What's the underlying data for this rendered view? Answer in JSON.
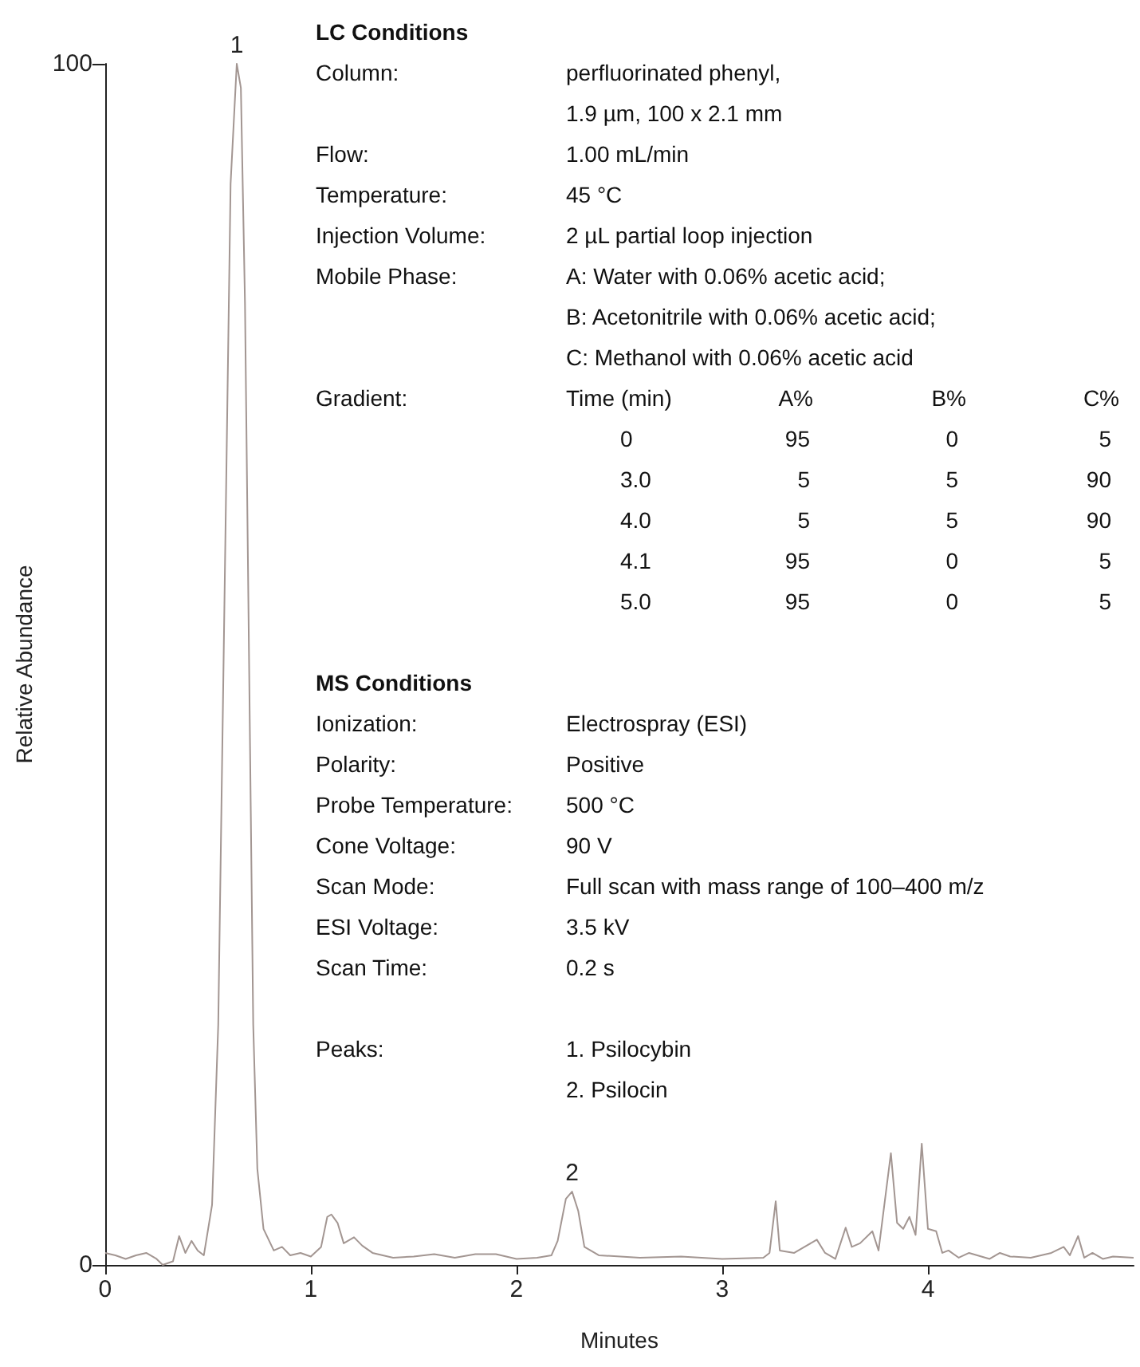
{
  "chart_data": {
    "type": "line",
    "xlabel": "Minutes",
    "ylabel": "Relative Abundance",
    "xlim": [
      0,
      5
    ],
    "xticks": [
      0,
      1,
      2,
      3,
      4
    ],
    "ylim": [
      0,
      100
    ],
    "yticks": [
      0,
      100
    ],
    "grid": false,
    "marker": "none",
    "line_style": "solid",
    "series": [
      {
        "color": "#a39692",
        "x": [
          0,
          0.05,
          0.1,
          0.15,
          0.2,
          0.25,
          0.28,
          0.33,
          0.36,
          0.39,
          0.42,
          0.45,
          0.48,
          0.52,
          0.55,
          0.58,
          0.61,
          0.64,
          0.66,
          0.68,
          0.7,
          0.72,
          0.74,
          0.77,
          0.82,
          0.86,
          0.9,
          0.95,
          1.0,
          1.05,
          1.08,
          1.1,
          1.13,
          1.16,
          1.21,
          1.25,
          1.3,
          1.4,
          1.5,
          1.6,
          1.7,
          1.8,
          1.9,
          2.0,
          2.1,
          2.17,
          2.2,
          2.24,
          2.27,
          2.3,
          2.33,
          2.4,
          2.6,
          2.8,
          3.0,
          3.2,
          3.23,
          3.26,
          3.28,
          3.35,
          3.4,
          3.46,
          3.5,
          3.55,
          3.6,
          3.63,
          3.67,
          3.73,
          3.76,
          3.82,
          3.85,
          3.88,
          3.91,
          3.94,
          3.97,
          4.0,
          4.04,
          4.07,
          4.1,
          4.15,
          4.2,
          4.3,
          4.35,
          4.4,
          4.5,
          4.6,
          4.66,
          4.69,
          4.73,
          4.76,
          4.8,
          4.85,
          4.9,
          5.0
        ],
        "values": [
          1,
          0.8,
          0.5,
          0.8,
          1,
          0.5,
          0,
          0.3,
          2.4,
          1,
          2,
          1.2,
          0.8,
          5,
          20,
          55,
          90,
          100,
          98,
          80,
          50,
          20,
          8,
          3,
          1.2,
          1.5,
          0.8,
          1,
          0.7,
          1.5,
          4,
          4.2,
          3.5,
          1.8,
          2.3,
          1.6,
          1,
          0.6,
          0.7,
          0.9,
          0.6,
          0.9,
          0.9,
          0.5,
          0.6,
          0.8,
          2,
          5.5,
          6.1,
          4.5,
          1.5,
          0.8,
          0.6,
          0.7,
          0.5,
          0.6,
          1,
          5.3,
          1.2,
          1,
          1.5,
          2.1,
          1,
          0.5,
          3.1,
          1.5,
          1.8,
          2.8,
          1.2,
          9.3,
          3.5,
          3,
          4,
          2.5,
          10.1,
          3,
          2.8,
          1,
          1.2,
          0.6,
          1,
          0.5,
          1,
          0.7,
          0.6,
          1,
          1.5,
          0.8,
          2.4,
          0.6,
          1,
          0.5,
          0.7,
          0.6
        ]
      }
    ],
    "annotations": [
      "LC Conditions",
      "Column:",
      "perfluorinated phenyl,",
      "1.9 µm, 100 x 2.1 mm",
      "Flow:",
      "1.00 mL/min",
      "Temperature:",
      "45 °C",
      "Injection Volume:",
      "2 µL partial loop injection",
      "Mobile Phase:",
      "A: Water with 0.06% acetic acid;",
      "B: Acetonitrile with 0.06% acetic acid;",
      "C: Methanol with 0.06% acetic acid",
      "Gradient:",
      "Time (min)",
      "A%",
      "B%",
      "C%",
      "0",
      "95",
      "0",
      "5",
      "3.0",
      "5",
      "5",
      "90",
      "4.0",
      "5",
      "5",
      "90",
      "4.1",
      "95",
      "0",
      "5",
      "5.0",
      "95",
      "0",
      "5",
      "MS Conditions",
      "Ionization:",
      "Electrospray (ESI)",
      "Polarity:",
      "Positive",
      "Probe Temperature:",
      "500 °C",
      "Cone Voltage:",
      "90 V",
      "Scan Mode:",
      "Full scan with mass range of 100–400 m/z",
      "ESI Voltage:",
      "3.5 kV",
      "Scan Time:",
      "0.2 s",
      "Peaks:",
      "1. Psilocybin",
      "2. Psilocin",
      {
        "text": "1",
        "x": 0.64,
        "y": 100
      },
      {
        "text": "2",
        "x": 2.27,
        "y": 6.1
      }
    ]
  }
}
